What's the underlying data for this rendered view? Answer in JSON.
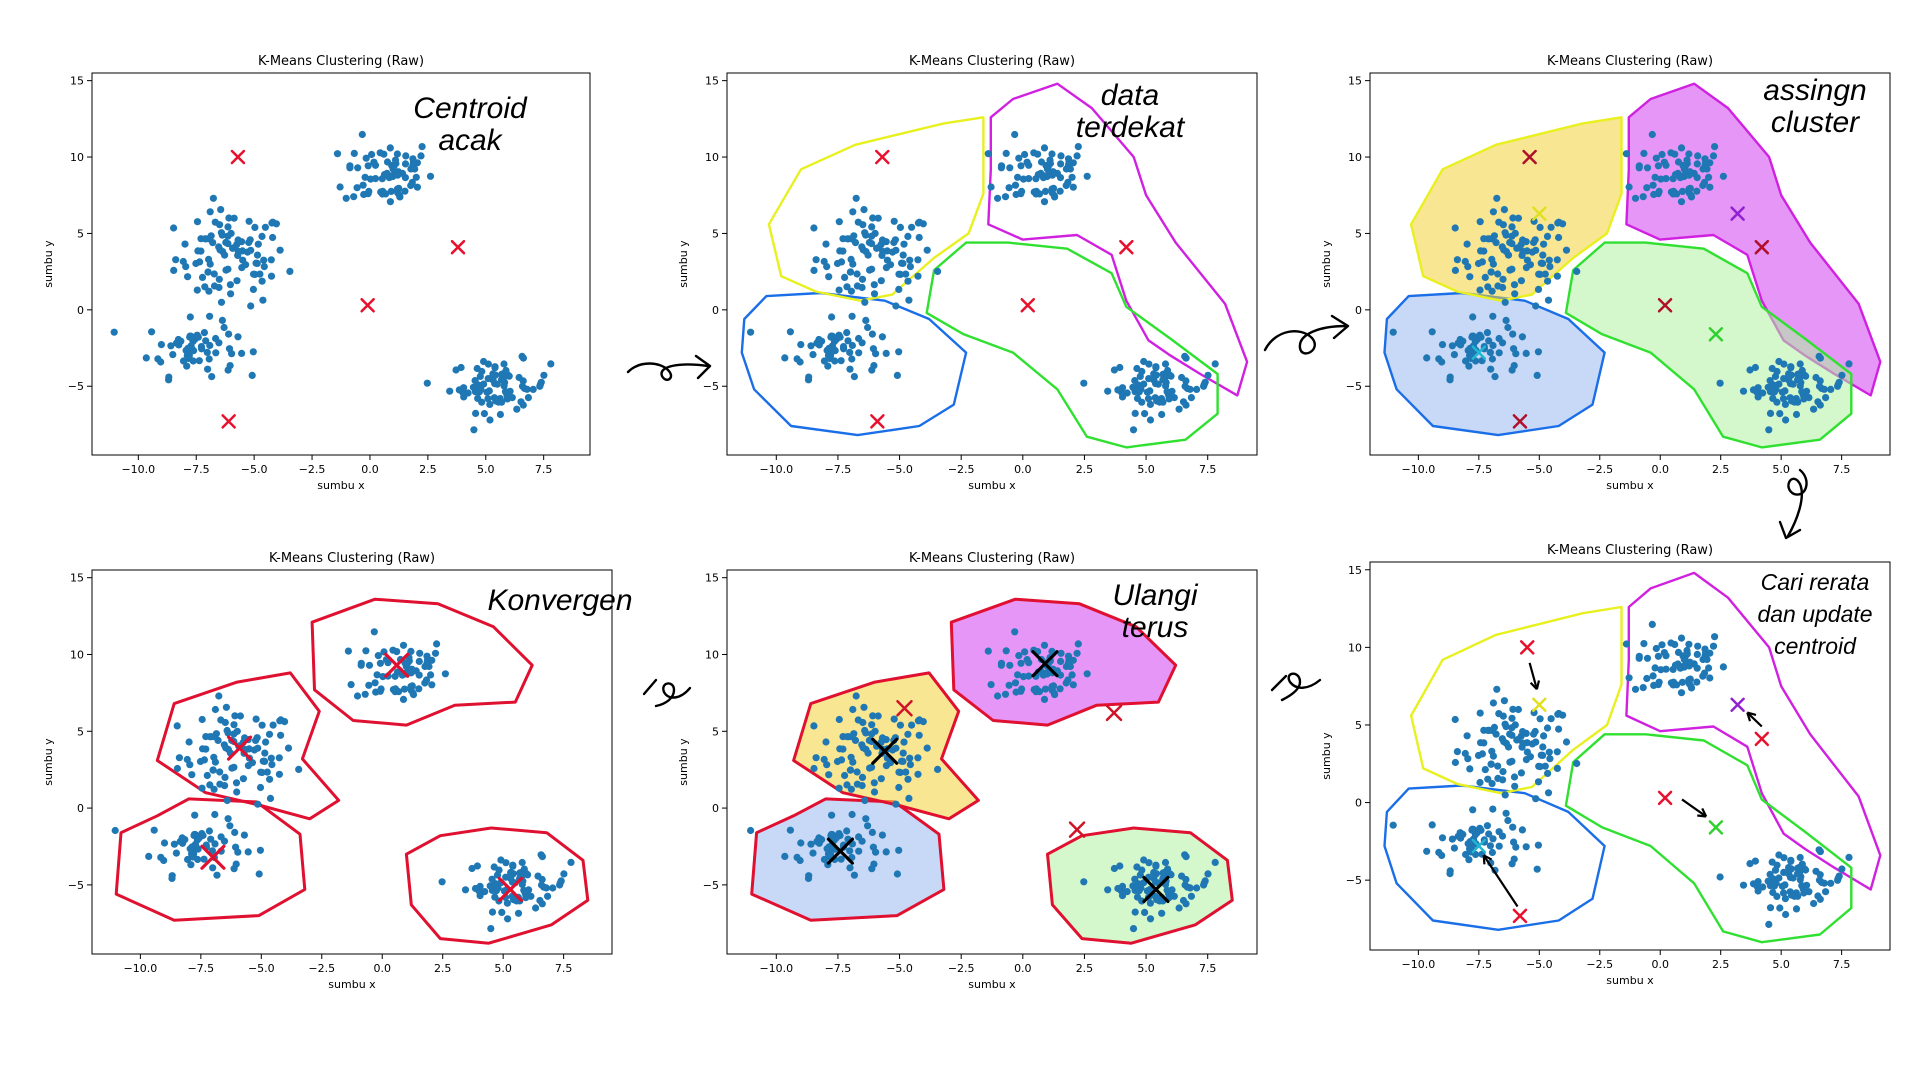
{
  "colors": {
    "point": "#1f77b4",
    "centroid_initial": "#e8112d",
    "stroke_blue": "#1a6ee8",
    "stroke_yellow": "#e8f020",
    "stroke_magenta": "#d020e0",
    "stroke_green": "#30e030",
    "stroke_red": "#e01030",
    "fill_blue": "#9ab8f0",
    "fill_yellow": "#f2d23a",
    "fill_magenta": "#d040f0",
    "fill_green": "#b0f0a0",
    "centroid_new_yellow": "#e0e020",
    "centroid_new_purple": "#9020d0",
    "centroid_new_green": "#30d030",
    "centroid_new_cyan": "#20b8d0",
    "arrow": "#000000"
  },
  "chart_data": [
    {
      "type": "scatter",
      "title": "K-Means Clustering (Raw)",
      "xlabel": "sumbu x",
      "ylabel": "sumbu y",
      "xlim": [
        -12,
        9.5
      ],
      "ylim": [
        -9.5,
        15.5
      ],
      "xticks": [
        "−10.0",
        "−7.5",
        "−5.0",
        "−2.5",
        "0.0",
        "2.5",
        "5.0",
        "7.5"
      ],
      "yticks": [
        "−5",
        "0",
        "5",
        "10",
        "15"
      ],
      "annotation": "Centroid acak",
      "centroids": [
        {
          "x": -5.7,
          "y": 10.0
        },
        {
          "x": 3.8,
          "y": 4.1
        },
        {
          "x": -0.1,
          "y": 0.3
        },
        {
          "x": -6.1,
          "y": -7.3
        }
      ]
    },
    {
      "type": "scatter",
      "title": "K-Means Clustering (Raw)",
      "xlabel": "sumbu x",
      "ylabel": "sumbu y",
      "xlim": [
        -12,
        9.5
      ],
      "ylim": [
        -9.5,
        15.5
      ],
      "xticks": [
        "−10.0",
        "−7.5",
        "−5.0",
        "−2.5",
        "0.0",
        "2.5",
        "5.0",
        "7.5"
      ],
      "yticks": [
        "−5",
        "0",
        "5",
        "10",
        "15"
      ],
      "annotation": "data terdekat",
      "centroids": [
        {
          "x": -5.7,
          "y": 10.0
        },
        {
          "x": 4.2,
          "y": 4.1
        },
        {
          "x": 0.2,
          "y": 0.3
        },
        {
          "x": -5.9,
          "y": -7.3
        }
      ]
    },
    {
      "type": "scatter",
      "title": "K-Means Clustering (Raw)",
      "xlabel": "sumbu x",
      "ylabel": "sumbu y",
      "xlim": [
        -12,
        9.5
      ],
      "ylim": [
        -9.5,
        15.5
      ],
      "xticks": [
        "−10.0",
        "−7.5",
        "−5.0",
        "−2.5",
        "0.0",
        "2.5",
        "5.0",
        "7.5"
      ],
      "yticks": [
        "−5",
        "0",
        "5",
        "10",
        "15"
      ],
      "annotation": "assingn cluster",
      "centroids": [
        {
          "x": -5.4,
          "y": 10.0
        },
        {
          "x": 4.2,
          "y": 4.1
        },
        {
          "x": 0.2,
          "y": 0.3
        },
        {
          "x": -5.8,
          "y": -7.3
        },
        {
          "x": -5.0,
          "y": 6.3
        },
        {
          "x": 3.2,
          "y": 6.3
        },
        {
          "x": 2.3,
          "y": -1.6
        },
        {
          "x": -7.5,
          "y": -2.8
        }
      ]
    },
    {
      "type": "scatter",
      "title": "K-Means Clustering (Raw)",
      "xlabel": "sumbu x",
      "ylabel": "sumbu y",
      "xlim": [
        -12,
        9.5
      ],
      "ylim": [
        -9.5,
        15.5
      ],
      "xticks": [
        "−10.0",
        "−7.5",
        "−5.0",
        "−2.5",
        "0.0",
        "2.5",
        "5.0",
        "7.5"
      ],
      "yticks": [
        "−5",
        "0",
        "5",
        "10",
        "15"
      ],
      "annotation": "Cari rerata dan update centroid",
      "centroids": [
        {
          "x": -5.5,
          "y": 10.0
        },
        {
          "x": 4.2,
          "y": 4.1
        },
        {
          "x": 0.2,
          "y": 0.3
        },
        {
          "x": -5.8,
          "y": -7.3
        },
        {
          "x": -5.0,
          "y": 6.3
        },
        {
          "x": 3.2,
          "y": 6.3
        },
        {
          "x": 2.3,
          "y": -1.6
        },
        {
          "x": -7.5,
          "y": -2.8
        }
      ]
    },
    {
      "type": "scatter",
      "title": "K-Means Clustering (Raw)",
      "xlabel": "sumbu x",
      "ylabel": "sumbu y",
      "xlim": [
        -12,
        9.5
      ],
      "ylim": [
        -9.5,
        15.5
      ],
      "xticks": [
        "−10.0",
        "−7.5",
        "−5.0",
        "−2.5",
        "0.0",
        "2.5",
        "5.0",
        "7.5"
      ],
      "yticks": [
        "−5",
        "0",
        "5",
        "10",
        "15"
      ],
      "annotation": "Ulangi terus",
      "centroids": [
        {
          "x": -4.8,
          "y": 6.5
        },
        {
          "x": 3.7,
          "y": 6.2
        },
        {
          "x": 2.2,
          "y": -1.4
        },
        {
          "x": -5.6,
          "y": 3.7
        },
        {
          "x": 0.9,
          "y": 9.4
        },
        {
          "x": 5.4,
          "y": -5.3
        },
        {
          "x": -7.4,
          "y": -2.8
        }
      ]
    },
    {
      "type": "scatter",
      "title": "K-Means Clustering (Raw)",
      "xlabel": "sumbu x",
      "ylabel": "sumbu y",
      "xlim": [
        -12,
        9.5
      ],
      "ylim": [
        -9.5,
        15.5
      ],
      "xticks": [
        "−10.0",
        "−7.5",
        "−5.0",
        "−2.5",
        "0.0",
        "2.5",
        "5.0",
        "7.5"
      ],
      "yticks": [
        "−5",
        "0",
        "5",
        "10",
        "15"
      ],
      "annotation": "Konvergen",
      "centroids": [
        {
          "x": -5.9,
          "y": 3.9
        },
        {
          "x": 0.6,
          "y": 9.3
        },
        {
          "x": 5.3,
          "y": -5.3
        },
        {
          "x": -7.0,
          "y": -3.2
        }
      ]
    }
  ]
}
